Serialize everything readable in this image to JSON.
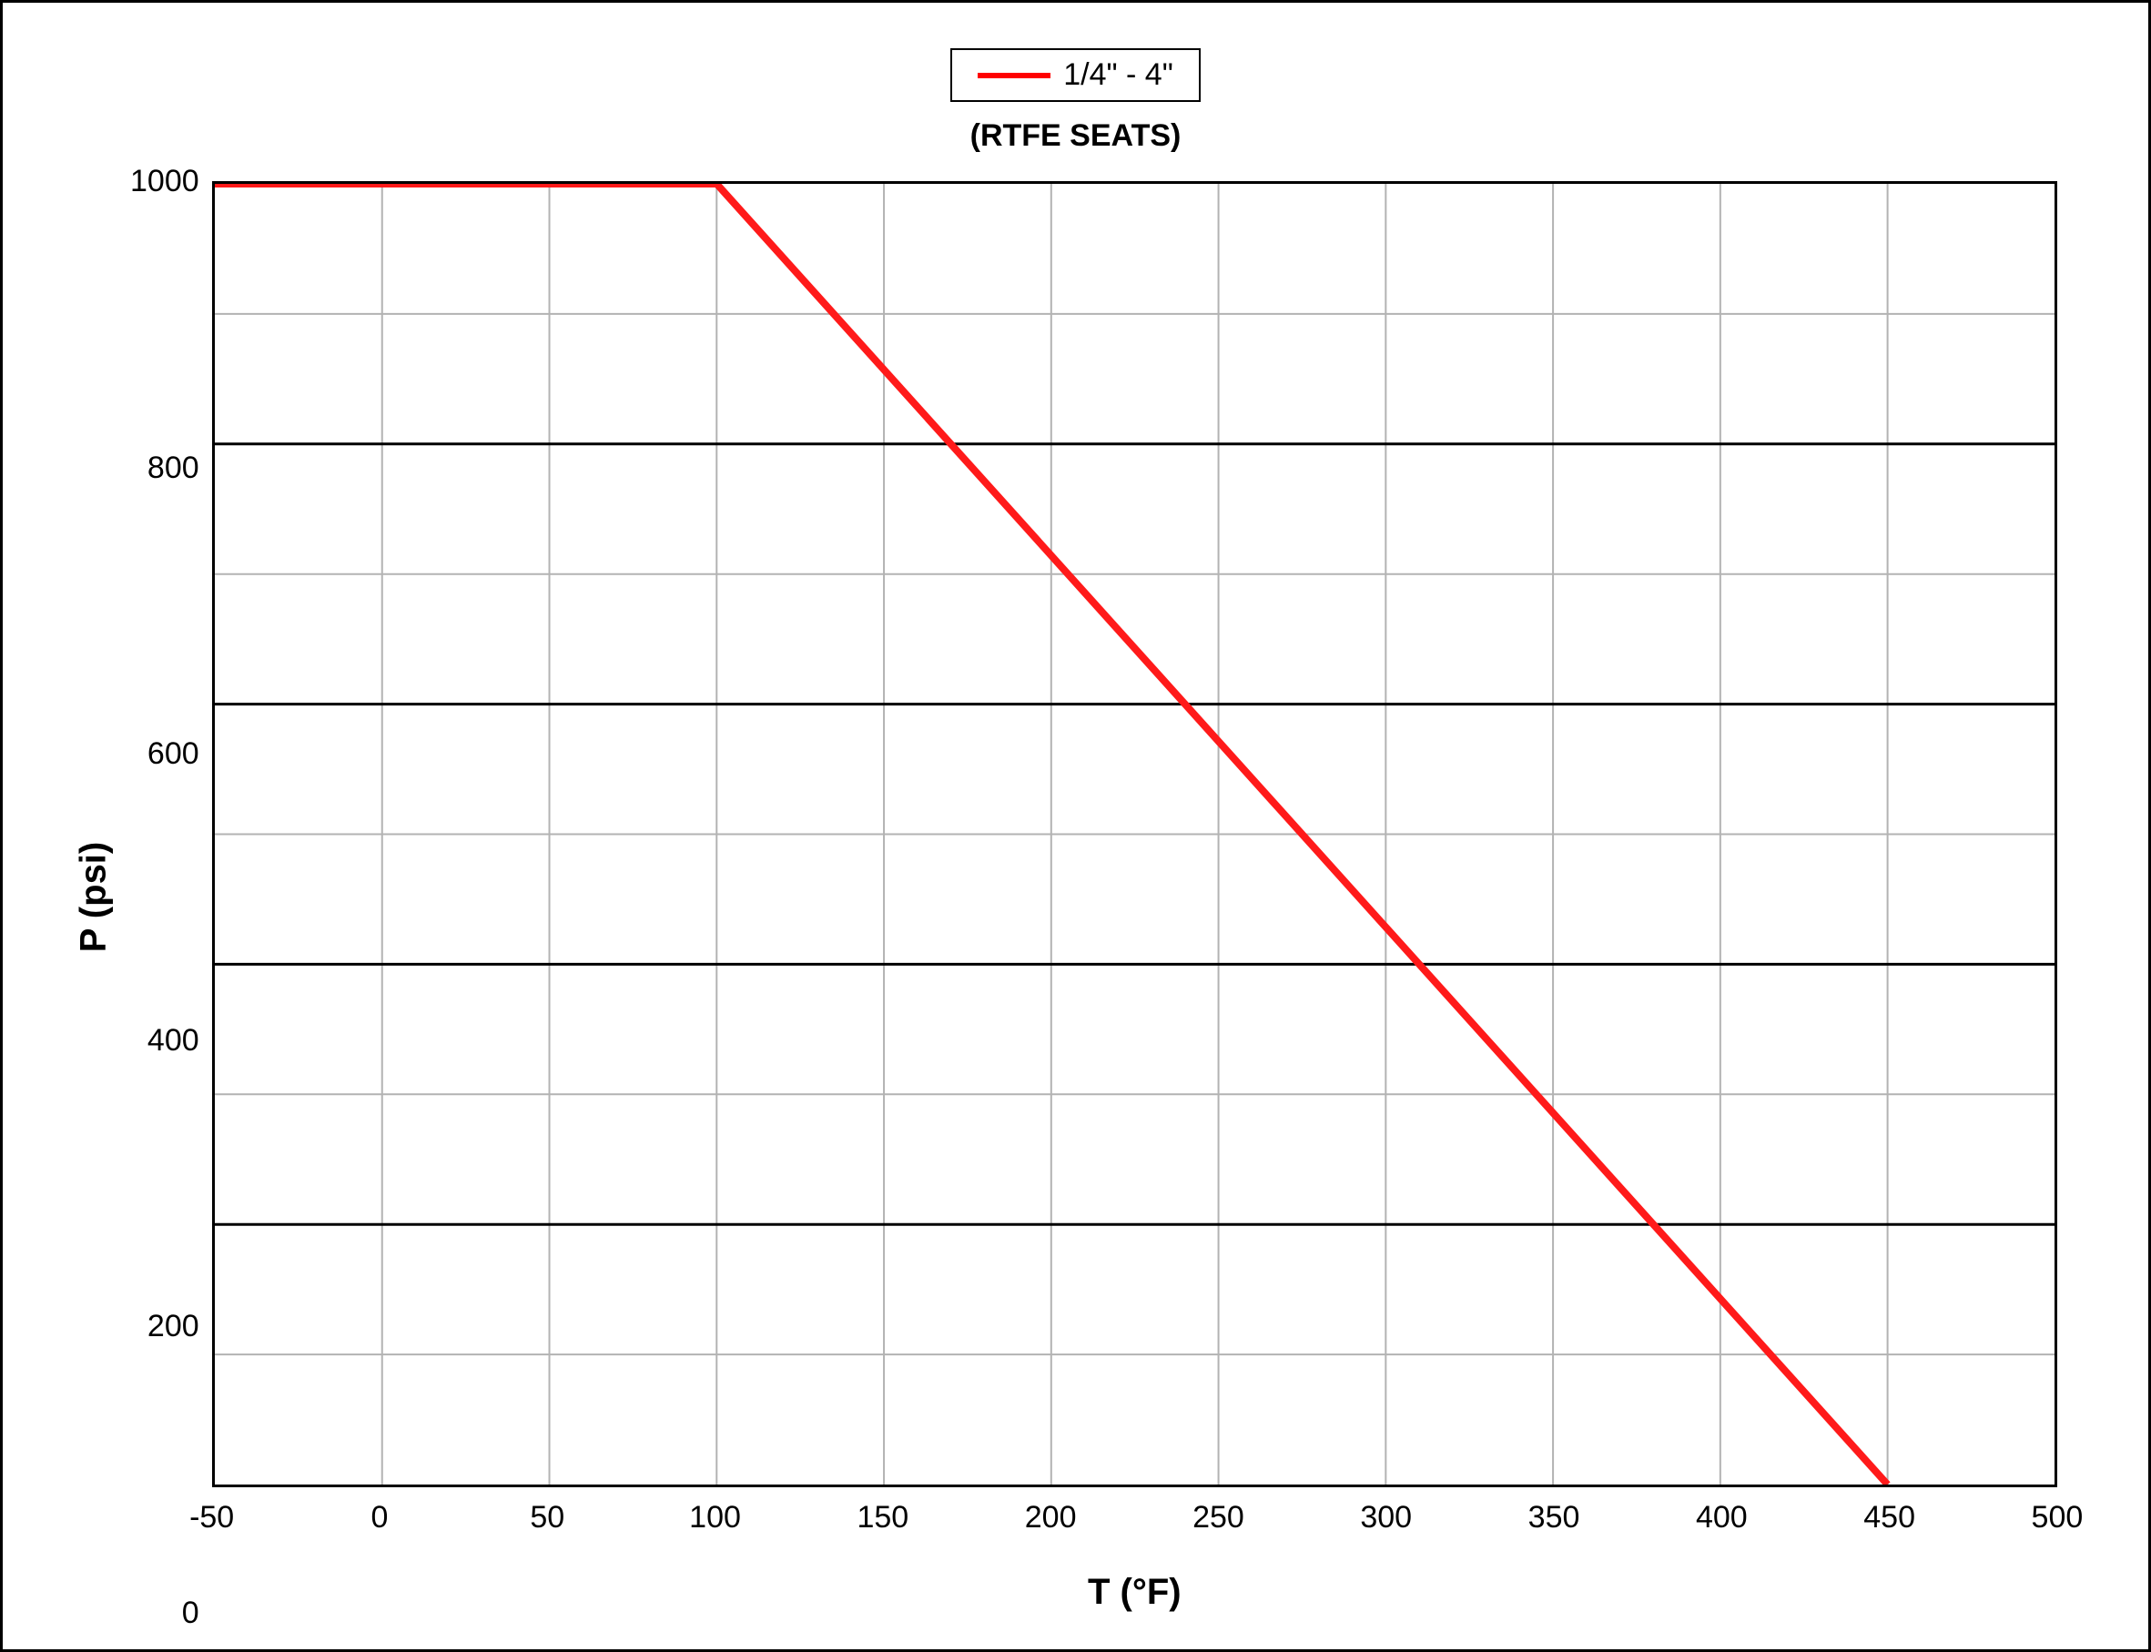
{
  "chart": {
    "type": "line",
    "legend": {
      "label": "1/4\" - 4\"",
      "line_color": "#ff0000",
      "line_width": 6,
      "border_color": "#000000"
    },
    "subtitle": "(RTFE SEATS)",
    "xlabel": "T (°F)",
    "ylabel": "P (psi)",
    "label_fontsize": 40,
    "tick_fontsize": 34,
    "xlim": [
      -50,
      500
    ],
    "ylim": [
      0,
      1000
    ],
    "xticks": [
      -50,
      0,
      50,
      100,
      150,
      200,
      250,
      300,
      350,
      400,
      450,
      500
    ],
    "yticks": [
      0,
      200,
      400,
      600,
      800,
      1000
    ],
    "minor_grid_color": "#b3b3b3",
    "major_grid_color": "#000000",
    "minor_grid_width": 2,
    "major_grid_width": 3,
    "background_color": "#ffffff",
    "series": {
      "color": "#ff1a1a",
      "width": 8,
      "points_x": [
        -50,
        100,
        450
      ],
      "points_y": [
        1000,
        1000,
        0
      ]
    }
  }
}
